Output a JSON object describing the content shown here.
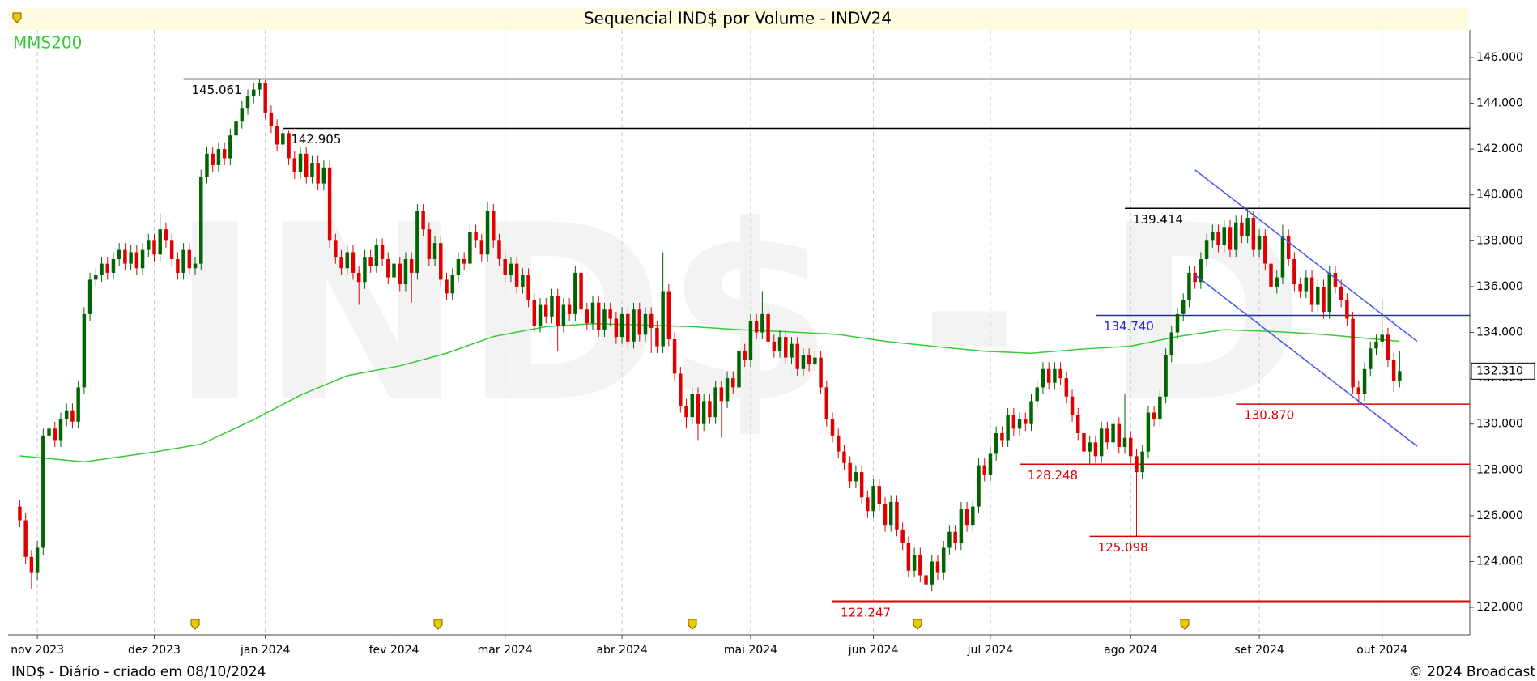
{
  "chart_data": {
    "type": "candlestick",
    "title": "Sequencial IND$ por Volume - INDV24",
    "watermark": "IND$ - D",
    "footer_left": "IND$ - Diário - criado em 08/10/2024",
    "footer_right": "© 2024 Broadcast",
    "up_color": "#006400",
    "down_color": "#e00000",
    "xlim": [
      -2,
      248
    ],
    "xticks": [
      {
        "value": 3,
        "label": "nov 2023"
      },
      {
        "value": 23,
        "label": "dez 2023"
      },
      {
        "value": 42,
        "label": "jan 2024"
      },
      {
        "value": 64,
        "label": "fev 2024"
      },
      {
        "value": 83,
        "label": "mar 2024"
      },
      {
        "value": 103,
        "label": "abr 2024"
      },
      {
        "value": 125,
        "label": "mai 2024"
      },
      {
        "value": 146,
        "label": "jun 2024"
      },
      {
        "value": 166,
        "label": "jul 2024"
      },
      {
        "value": 190,
        "label": "ago 2024"
      },
      {
        "value": 212,
        "label": "set 2024"
      },
      {
        "value": 233,
        "label": "out 2024"
      }
    ],
    "ylim": [
      120800,
      147200
    ],
    "yticks": [
      {
        "value": 122000,
        "label": "122.000"
      },
      {
        "value": 124000,
        "label": "124.000"
      },
      {
        "value": 126000,
        "label": "126.000"
      },
      {
        "value": 128000,
        "label": "128.000"
      },
      {
        "value": 130000,
        "label": "130.000"
      },
      {
        "value": 132000,
        "label": "132.000"
      },
      {
        "value": 134000,
        "label": "134.000"
      },
      {
        "value": 136000,
        "label": "136.000"
      },
      {
        "value": 138000,
        "label": "138.000"
      },
      {
        "value": 140000,
        "label": "140.000"
      },
      {
        "value": 142000,
        "label": "142.000"
      },
      {
        "value": 144000,
        "label": "144.000"
      },
      {
        "value": 146000,
        "label": "146.000"
      }
    ],
    "xgrid": true,
    "last_price": {
      "value": 132310,
      "label": "132.310"
    },
    "candles": {
      "open": [
        126400,
        125800,
        124200,
        123500,
        124600,
        129500,
        129800,
        129300,
        130200,
        130600,
        130100,
        131600,
        134800,
        136300,
        136500,
        137000,
        136600,
        137200,
        137600,
        137000,
        137500,
        136800,
        137600,
        138000,
        137400,
        138500,
        138000,
        137200,
        136600,
        137600,
        136800,
        137000,
        140800,
        141800,
        141300,
        142000,
        141600,
        142600,
        143200,
        143800,
        144300,
        144600,
        144900,
        143600,
        143000,
        142200,
        142700,
        141600,
        141000,
        141800,
        140800,
        141400,
        140500,
        141200,
        138000,
        137300,
        136800,
        137500,
        136600,
        136200,
        137300,
        136900,
        137800,
        137200,
        136400,
        137000,
        136100,
        137200,
        136600,
        139300,
        138500,
        137200,
        137900,
        136300,
        135700,
        136500,
        137200,
        137000,
        138400,
        138000,
        137400,
        139300,
        138000,
        137200,
        136500,
        137000,
        136000,
        136500,
        135400,
        134300,
        135200,
        134700,
        135600,
        134300,
        135200,
        134800,
        136600,
        135000,
        134400,
        135300,
        134100,
        135000,
        134600,
        133800,
        134800,
        133600,
        135000,
        133900,
        134800,
        134200,
        133400,
        135800,
        133700,
        132200,
        130800,
        130300,
        131300,
        130000,
        131000,
        130300,
        131600,
        131000,
        132000,
        131600,
        133200,
        132800,
        134500,
        134000,
        134800,
        133600,
        133200,
        133800,
        132900,
        133500,
        132400,
        133000,
        132600,
        132900,
        131600,
        130200,
        129500,
        128800,
        128300,
        127500,
        127900,
        126800,
        126200,
        127300,
        126500,
        125600,
        126600,
        125400,
        124800,
        123600,
        124300,
        123400,
        123000,
        124000,
        123500,
        124600,
        125300,
        124800,
        126300,
        125600,
        126400,
        128200,
        127800,
        128700,
        129600,
        129300,
        130400,
        129800,
        130200,
        130000,
        131000,
        131600,
        132400,
        131800,
        132400,
        132000,
        131200,
        130400,
        129600,
        128800,
        129200,
        128600,
        129800,
        129200,
        130000,
        129000,
        129400,
        128600,
        127900,
        128800,
        130500,
        130200,
        131200,
        133000,
        134000,
        134800,
        135400,
        136600,
        136200,
        137200,
        138000,
        138400,
        137800,
        138600,
        137600,
        138800,
        138200,
        139000,
        137600,
        138200,
        137000,
        136000,
        136400,
        138200,
        137200,
        136100,
        135800,
        136400,
        135200,
        136000,
        134900,
        136600,
        136000,
        135400,
        134600,
        131600,
        131300,
        132400,
        133300,
        133600,
        133900,
        132800,
        131900
      ],
      "high": [
        126700,
        126100,
        124500,
        124900,
        129800,
        130100,
        130100,
        130500,
        130900,
        130900,
        131900,
        135100,
        136600,
        136800,
        137300,
        137300,
        137500,
        137900,
        137900,
        137800,
        137800,
        137900,
        138300,
        138300,
        139200,
        138800,
        138300,
        137500,
        137900,
        137900,
        137300,
        141100,
        142100,
        142100,
        142300,
        142300,
        142900,
        143500,
        144100,
        144600,
        144900,
        145061,
        145000,
        143900,
        143300,
        142905,
        142800,
        141900,
        142100,
        142100,
        141700,
        141700,
        141500,
        141500,
        138300,
        137600,
        137800,
        137800,
        136900,
        137600,
        137600,
        138100,
        138100,
        137500,
        137300,
        137300,
        137500,
        137500,
        139600,
        139600,
        138800,
        138200,
        138200,
        136600,
        136800,
        137500,
        137500,
        138700,
        138700,
        138300,
        139700,
        139600,
        138300,
        137500,
        137300,
        137300,
        136800,
        136800,
        135700,
        135500,
        135500,
        135900,
        135900,
        135500,
        135500,
        136900,
        136900,
        135300,
        135600,
        135600,
        135300,
        135300,
        134900,
        135100,
        135100,
        135300,
        135300,
        135100,
        135100,
        134500,
        137500,
        136100,
        134000,
        132500,
        131100,
        131600,
        131600,
        131300,
        131300,
        131900,
        131900,
        132300,
        132300,
        133500,
        133500,
        134800,
        134800,
        135800,
        135100,
        133900,
        134100,
        134100,
        133800,
        133800,
        133300,
        133300,
        133200,
        133200,
        131900,
        130500,
        129800,
        129100,
        128600,
        128200,
        128200,
        127100,
        127600,
        127600,
        126800,
        126900,
        126900,
        125700,
        125100,
        124600,
        124600,
        123700,
        124300,
        124300,
        124900,
        125600,
        125600,
        126600,
        126600,
        126700,
        128500,
        128500,
        129000,
        129900,
        129900,
        130700,
        130700,
        130500,
        130500,
        131300,
        131900,
        132700,
        132700,
        132700,
        132700,
        132300,
        131500,
        130700,
        129900,
        129500,
        129500,
        130100,
        130100,
        130300,
        130300,
        131300,
        129700,
        128900,
        129100,
        130800,
        130800,
        131500,
        133300,
        134300,
        135100,
        135700,
        136900,
        136900,
        137500,
        138300,
        138700,
        138700,
        138900,
        138900,
        139100,
        139100,
        139414,
        139300,
        138500,
        138500,
        137300,
        136700,
        138700,
        138500,
        137500,
        136400,
        136700,
        136700,
        136300,
        136300,
        136900,
        136900,
        136300,
        135700,
        134900,
        131900,
        132700,
        133600,
        133900,
        135400,
        134200,
        133100,
        133200
      ],
      "low": [
        125500,
        123900,
        122800,
        123200,
        124300,
        129200,
        129000,
        129000,
        129900,
        129800,
        129800,
        131300,
        134500,
        136000,
        136200,
        136300,
        136300,
        136900,
        136700,
        136700,
        136500,
        136500,
        137300,
        137100,
        137100,
        137700,
        136900,
        136300,
        136300,
        136500,
        136500,
        136700,
        140500,
        141000,
        141000,
        141300,
        141300,
        142300,
        142900,
        143500,
        144000,
        144300,
        143300,
        142700,
        141900,
        141900,
        141300,
        140700,
        140700,
        140500,
        140500,
        140200,
        140200,
        137700,
        137000,
        136500,
        136500,
        136300,
        135200,
        135900,
        136600,
        136600,
        136900,
        136100,
        136100,
        135800,
        135800,
        135300,
        136300,
        138200,
        136900,
        136900,
        136000,
        135400,
        135400,
        136200,
        136700,
        136700,
        137700,
        137100,
        137100,
        137700,
        136900,
        136200,
        136200,
        135700,
        135700,
        135100,
        134000,
        134000,
        134400,
        134400,
        133200,
        134000,
        134500,
        134500,
        134700,
        134100,
        134100,
        133800,
        133800,
        134300,
        133500,
        133500,
        133300,
        133300,
        133600,
        133600,
        133100,
        133100,
        133100,
        133400,
        131900,
        130500,
        129800,
        130000,
        129300,
        129700,
        130000,
        130000,
        129400,
        130700,
        131300,
        131300,
        132500,
        132500,
        133700,
        133700,
        133300,
        132900,
        132900,
        132600,
        132600,
        132100,
        132100,
        132300,
        132300,
        131300,
        129900,
        129200,
        128500,
        128000,
        127200,
        127200,
        126500,
        125900,
        125900,
        126200,
        125300,
        125300,
        125100,
        124500,
        123300,
        123300,
        123100,
        122247,
        122700,
        123200,
        123200,
        124300,
        124500,
        124500,
        125300,
        125300,
        126100,
        127500,
        127500,
        128400,
        129000,
        129000,
        129500,
        129500,
        129700,
        129700,
        130700,
        131300,
        131500,
        131500,
        131700,
        130900,
        130100,
        129300,
        128500,
        128248,
        128300,
        128300,
        128900,
        128900,
        128700,
        128700,
        128300,
        125098,
        127600,
        128500,
        129900,
        129900,
        130900,
        132700,
        133700,
        134500,
        135100,
        135900,
        135900,
        136900,
        137700,
        137500,
        137500,
        137300,
        137300,
        137900,
        137900,
        137300,
        137300,
        136700,
        135700,
        135700,
        136100,
        136900,
        135800,
        135500,
        135500,
        134900,
        134900,
        134600,
        134600,
        135700,
        135100,
        134300,
        131300,
        130870,
        131000,
        132100,
        133000,
        133300,
        132500,
        131400,
        131600
      ],
      "close": [
        125800,
        124200,
        123500,
        124600,
        129500,
        129800,
        129300,
        130200,
        130600,
        130100,
        131600,
        134800,
        136300,
        136500,
        137000,
        136600,
        137200,
        137600,
        137000,
        137500,
        136800,
        137600,
        138000,
        137400,
        138500,
        138000,
        137200,
        136600,
        137600,
        136800,
        137000,
        140800,
        141800,
        141300,
        142000,
        141600,
        142600,
        143200,
        143800,
        144300,
        144600,
        144900,
        143600,
        143000,
        142200,
        142700,
        141600,
        141000,
        141800,
        140800,
        141400,
        140500,
        141200,
        138000,
        137300,
        136800,
        137500,
        136600,
        136200,
        137300,
        136900,
        137800,
        137200,
        136400,
        137000,
        136100,
        137200,
        136600,
        139300,
        138500,
        137200,
        137900,
        136300,
        135700,
        136500,
        137200,
        137000,
        138400,
        138000,
        137400,
        139300,
        138000,
        137200,
        136500,
        137000,
        136000,
        136500,
        135400,
        134300,
        135200,
        134700,
        135600,
        134300,
        135200,
        134800,
        136600,
        135000,
        134400,
        135300,
        134100,
        135000,
        134600,
        133800,
        134800,
        133600,
        135000,
        133900,
        134800,
        134200,
        133400,
        135800,
        133700,
        132200,
        130800,
        130300,
        131300,
        130000,
        131000,
        130300,
        131600,
        131000,
        132000,
        131600,
        133200,
        132800,
        134500,
        134000,
        134800,
        133600,
        133200,
        133800,
        132900,
        133500,
        132400,
        133000,
        132600,
        132900,
        131600,
        130200,
        129500,
        128800,
        128300,
        127500,
        127900,
        126800,
        126200,
        127300,
        126500,
        125600,
        126600,
        125400,
        124800,
        123600,
        124300,
        123400,
        123000,
        124000,
        123500,
        124600,
        125300,
        124800,
        126300,
        125600,
        126400,
        128200,
        127800,
        128700,
        129600,
        129300,
        130400,
        129800,
        130200,
        130000,
        131000,
        131600,
        132400,
        131800,
        132400,
        132000,
        131200,
        130400,
        129600,
        128800,
        129200,
        128600,
        129800,
        129200,
        130000,
        129000,
        129400,
        128600,
        127900,
        128800,
        130500,
        130200,
        131200,
        133000,
        134000,
        134800,
        135400,
        136600,
        136200,
        137200,
        138000,
        138400,
        137800,
        138600,
        137600,
        138800,
        138200,
        139000,
        137600,
        138200,
        137000,
        136000,
        136400,
        138200,
        137200,
        136100,
        135800,
        136400,
        135200,
        136000,
        134900,
        136600,
        136000,
        135400,
        134600,
        131600,
        131300,
        132400,
        133300,
        133600,
        133900,
        132800,
        131900,
        132310
      ]
    },
    "moving_average": {
      "name": "MMS200",
      "color": "#33cc33",
      "x": [
        0,
        11,
        23,
        31,
        40,
        48,
        56,
        65,
        73,
        81,
        90,
        98,
        106,
        115,
        123,
        131,
        140,
        148,
        156,
        165,
        173,
        181,
        190,
        198,
        206,
        215,
        223,
        236
      ],
      "values": [
        128610,
        128350,
        128780,
        129120,
        130190,
        131260,
        132110,
        132540,
        133090,
        133820,
        134250,
        134380,
        134330,
        134250,
        134120,
        134030,
        133910,
        133610,
        133400,
        133180,
        133090,
        133260,
        133400,
        133820,
        134120,
        134030,
        133910,
        133610
      ]
    },
    "levels": [
      {
        "value": 145061,
        "label": "145.061",
        "from": 28,
        "color": "#000000"
      },
      {
        "value": 142905,
        "label": "142.905",
        "from": 45,
        "color": "#000000"
      },
      {
        "value": 139414,
        "label": "139.414",
        "from": 189,
        "color": "#000000"
      },
      {
        "value": 134740,
        "label": "134.740",
        "from": 184,
        "color": "#2222ee"
      },
      {
        "value": 130870,
        "label": "130.870",
        "from": 208,
        "color": "#e00000"
      },
      {
        "value": 128248,
        "label": "128.248",
        "from": 171,
        "color": "#e00000"
      },
      {
        "value": 125098,
        "label": "125.098",
        "from": 183,
        "color": "#e00000"
      },
      {
        "value": 122247,
        "label": "122.247",
        "from": 139,
        "color": "#e00000"
      }
    ],
    "trendlines": [
      {
        "color": "#4455ee",
        "x": [
          201,
          239
        ],
        "values": [
          141090,
          133610
        ]
      },
      {
        "color": "#4455ee",
        "x": [
          201,
          239
        ],
        "values": [
          136510,
          129030
        ]
      }
    ]
  }
}
